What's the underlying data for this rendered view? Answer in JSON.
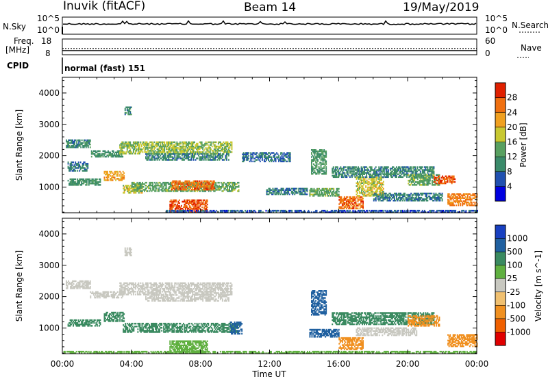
{
  "header": {
    "station": "Inuvik (fitACF)",
    "beam": "Beam 14",
    "date": "19/May/2019"
  },
  "panels": {
    "nsky_label": "N.Sky",
    "nsearch_label": "N.Search",
    "nsky_ticks": [
      "10^5",
      "10^0"
    ],
    "nsearch_ticks": [
      "10^5",
      "10^0"
    ],
    "freq_label_line1": "Freq.",
    "freq_label_line2": "[MHz]",
    "freq_ticks": [
      "18",
      "8"
    ],
    "nave_label": "Nave",
    "nave_ticks": [
      "60",
      "0"
    ],
    "cpid_label": "CPID",
    "cpid_value": "normal (fast) 151"
  },
  "colors": {
    "ground_scatter": "#c8c8c0",
    "power_scale": [
      "#0000e0",
      "#2050b0",
      "#3a8a6a",
      "#58a060",
      "#c8c830",
      "#f0a020",
      "#f07010",
      "#e02000"
    ],
    "velocity_scale": [
      "#1840c0",
      "#2060a0",
      "#3a8a60",
      "#60b040",
      "#c8c8c0",
      "#f0c070",
      "#f09020",
      "#f06000",
      "#e00000"
    ]
  },
  "chart_data": [
    {
      "type": "heatmap",
      "title": "",
      "xlabel": "",
      "ylabel": "Slant Range [km]",
      "x_tick_labels": [
        "00:00",
        "04:00",
        "08:00",
        "12:00",
        "16:00",
        "20:00",
        "00:00"
      ],
      "xlim_hours": [
        0,
        24
      ],
      "ylim": [
        180,
        4500
      ],
      "y_ticks": [
        1000,
        2000,
        3000,
        4000
      ],
      "colorbar": {
        "label": "Power [dB]",
        "ticks": [
          4,
          8,
          12,
          16,
          20,
          24,
          28
        ],
        "range": [
          0,
          32
        ]
      },
      "echo_regions": [
        {
          "t0": 0.2,
          "t1": 1.6,
          "r0": 2250,
          "r1": 2500,
          "value": 10
        },
        {
          "t0": 0.3,
          "t1": 1.5,
          "r0": 1500,
          "r1": 1800,
          "value": 9
        },
        {
          "t0": 0.3,
          "t1": 2.2,
          "r0": 1050,
          "r1": 1250,
          "value": 11
        },
        {
          "t0": 1.6,
          "t1": 3.5,
          "r0": 1950,
          "r1": 2150,
          "value": 11
        },
        {
          "t0": 2.4,
          "t1": 3.6,
          "r0": 1200,
          "r1": 1500,
          "value": 22
        },
        {
          "t0": 3.5,
          "t1": 4.6,
          "r0": 800,
          "r1": 1050,
          "value": 18
        },
        {
          "t0": 3.3,
          "t1": 9.8,
          "r0": 2050,
          "r1": 2450,
          "value": 16
        },
        {
          "t0": 4.8,
          "t1": 9.6,
          "r0": 1850,
          "r1": 2050,
          "value": 10
        },
        {
          "t0": 4.0,
          "t1": 10.2,
          "r0": 850,
          "r1": 1150,
          "value": 14
        },
        {
          "t0": 6.3,
          "t1": 8.8,
          "r0": 900,
          "r1": 1200,
          "value": 26
        },
        {
          "t0": 6.2,
          "t1": 8.4,
          "r0": 200,
          "r1": 600,
          "value": 28
        },
        {
          "t0": 3.6,
          "t1": 4.0,
          "r0": 3300,
          "r1": 3550,
          "value": 10
        },
        {
          "t0": 10.4,
          "t1": 13.2,
          "r0": 1800,
          "r1": 2100,
          "value": 8
        },
        {
          "t0": 11.8,
          "t1": 14.2,
          "r0": 750,
          "r1": 950,
          "value": 9
        },
        {
          "t0": 14.3,
          "t1": 16.0,
          "r0": 700,
          "r1": 950,
          "value": 14
        },
        {
          "t0": 14.4,
          "t1": 15.3,
          "r0": 1400,
          "r1": 2200,
          "value": 12
        },
        {
          "t0": 16.0,
          "t1": 17.4,
          "r0": 300,
          "r1": 700,
          "value": 26
        },
        {
          "t0": 17.0,
          "t1": 18.6,
          "r0": 700,
          "r1": 1300,
          "value": 18
        },
        {
          "t0": 15.6,
          "t1": 21.5,
          "r0": 1300,
          "r1": 1650,
          "value": 10
        },
        {
          "t0": 20.0,
          "t1": 21.8,
          "r0": 1050,
          "r1": 1400,
          "value": 14
        },
        {
          "t0": 21.5,
          "t1": 22.7,
          "r0": 1100,
          "r1": 1350,
          "value": 27
        },
        {
          "t0": 22.3,
          "t1": 24.0,
          "r0": 400,
          "r1": 800,
          "value": 25
        },
        {
          "t0": 18.0,
          "t1": 22.0,
          "r0": 550,
          "r1": 800,
          "value": 9
        },
        {
          "t0": 6.0,
          "t1": 24.0,
          "r0": 180,
          "r1": 260,
          "value": 6
        }
      ]
    },
    {
      "type": "heatmap",
      "title": "",
      "xlabel": "Time UT",
      "ylabel": "Slant Range [km]",
      "x_tick_labels": [
        "00:00",
        "04:00",
        "08:00",
        "12:00",
        "16:00",
        "20:00",
        "00:00"
      ],
      "xlim_hours": [
        0,
        24
      ],
      "ylim": [
        180,
        4500
      ],
      "y_ticks": [
        1000,
        2000,
        3000,
        4000
      ],
      "colorbar": {
        "label": "Velocity [m s^-1]",
        "ticks": [
          1000,
          500,
          100,
          25,
          -25,
          -100,
          -500,
          -1000
        ]
      },
      "echo_regions": [
        {
          "t0": 0.2,
          "t1": 1.6,
          "r0": 2250,
          "r1": 2500,
          "value": 0,
          "ground_scatter": true
        },
        {
          "t0": 1.6,
          "t1": 3.5,
          "r0": 1950,
          "r1": 2150,
          "value": 0,
          "ground_scatter": true
        },
        {
          "t0": 3.3,
          "t1": 9.8,
          "r0": 2050,
          "r1": 2450,
          "value": 0,
          "ground_scatter": true
        },
        {
          "t0": 4.8,
          "t1": 9.6,
          "r0": 1850,
          "r1": 2050,
          "value": 0,
          "ground_scatter": true
        },
        {
          "t0": 3.6,
          "t1": 4.0,
          "r0": 3300,
          "r1": 3550,
          "value": 0,
          "ground_scatter": true
        },
        {
          "t0": 2.4,
          "t1": 3.6,
          "r0": 1200,
          "r1": 1500,
          "value": 150
        },
        {
          "t0": 0.3,
          "t1": 2.2,
          "r0": 1050,
          "r1": 1250,
          "value": 300
        },
        {
          "t0": 3.5,
          "t1": 10.2,
          "r0": 850,
          "r1": 1150,
          "value": 200
        },
        {
          "t0": 6.2,
          "t1": 8.4,
          "r0": 200,
          "r1": 600,
          "value": 50
        },
        {
          "t0": 9.7,
          "t1": 10.4,
          "r0": 800,
          "r1": 1200,
          "value": 800
        },
        {
          "t0": 14.3,
          "t1": 16.0,
          "r0": 700,
          "r1": 950,
          "value": 600
        },
        {
          "t0": 14.4,
          "t1": 15.3,
          "r0": 1400,
          "r1": 2200,
          "value": 700
        },
        {
          "t0": 16.0,
          "t1": 17.4,
          "r0": 300,
          "r1": 700,
          "value": -400
        },
        {
          "t0": 17.0,
          "t1": 20.5,
          "r0": 750,
          "r1": 1000,
          "value": 0,
          "ground_scatter": true
        },
        {
          "t0": 15.6,
          "t1": 21.5,
          "r0": 1100,
          "r1": 1500,
          "value": 200
        },
        {
          "t0": 20.0,
          "t1": 21.8,
          "r0": 1050,
          "r1": 1400,
          "value": -300
        },
        {
          "t0": 22.3,
          "t1": 24.0,
          "r0": 400,
          "r1": 800,
          "value": -150
        },
        {
          "t0": 0.0,
          "t1": 24.0,
          "r0": 180,
          "r1": 260,
          "value": 50
        }
      ]
    }
  ]
}
